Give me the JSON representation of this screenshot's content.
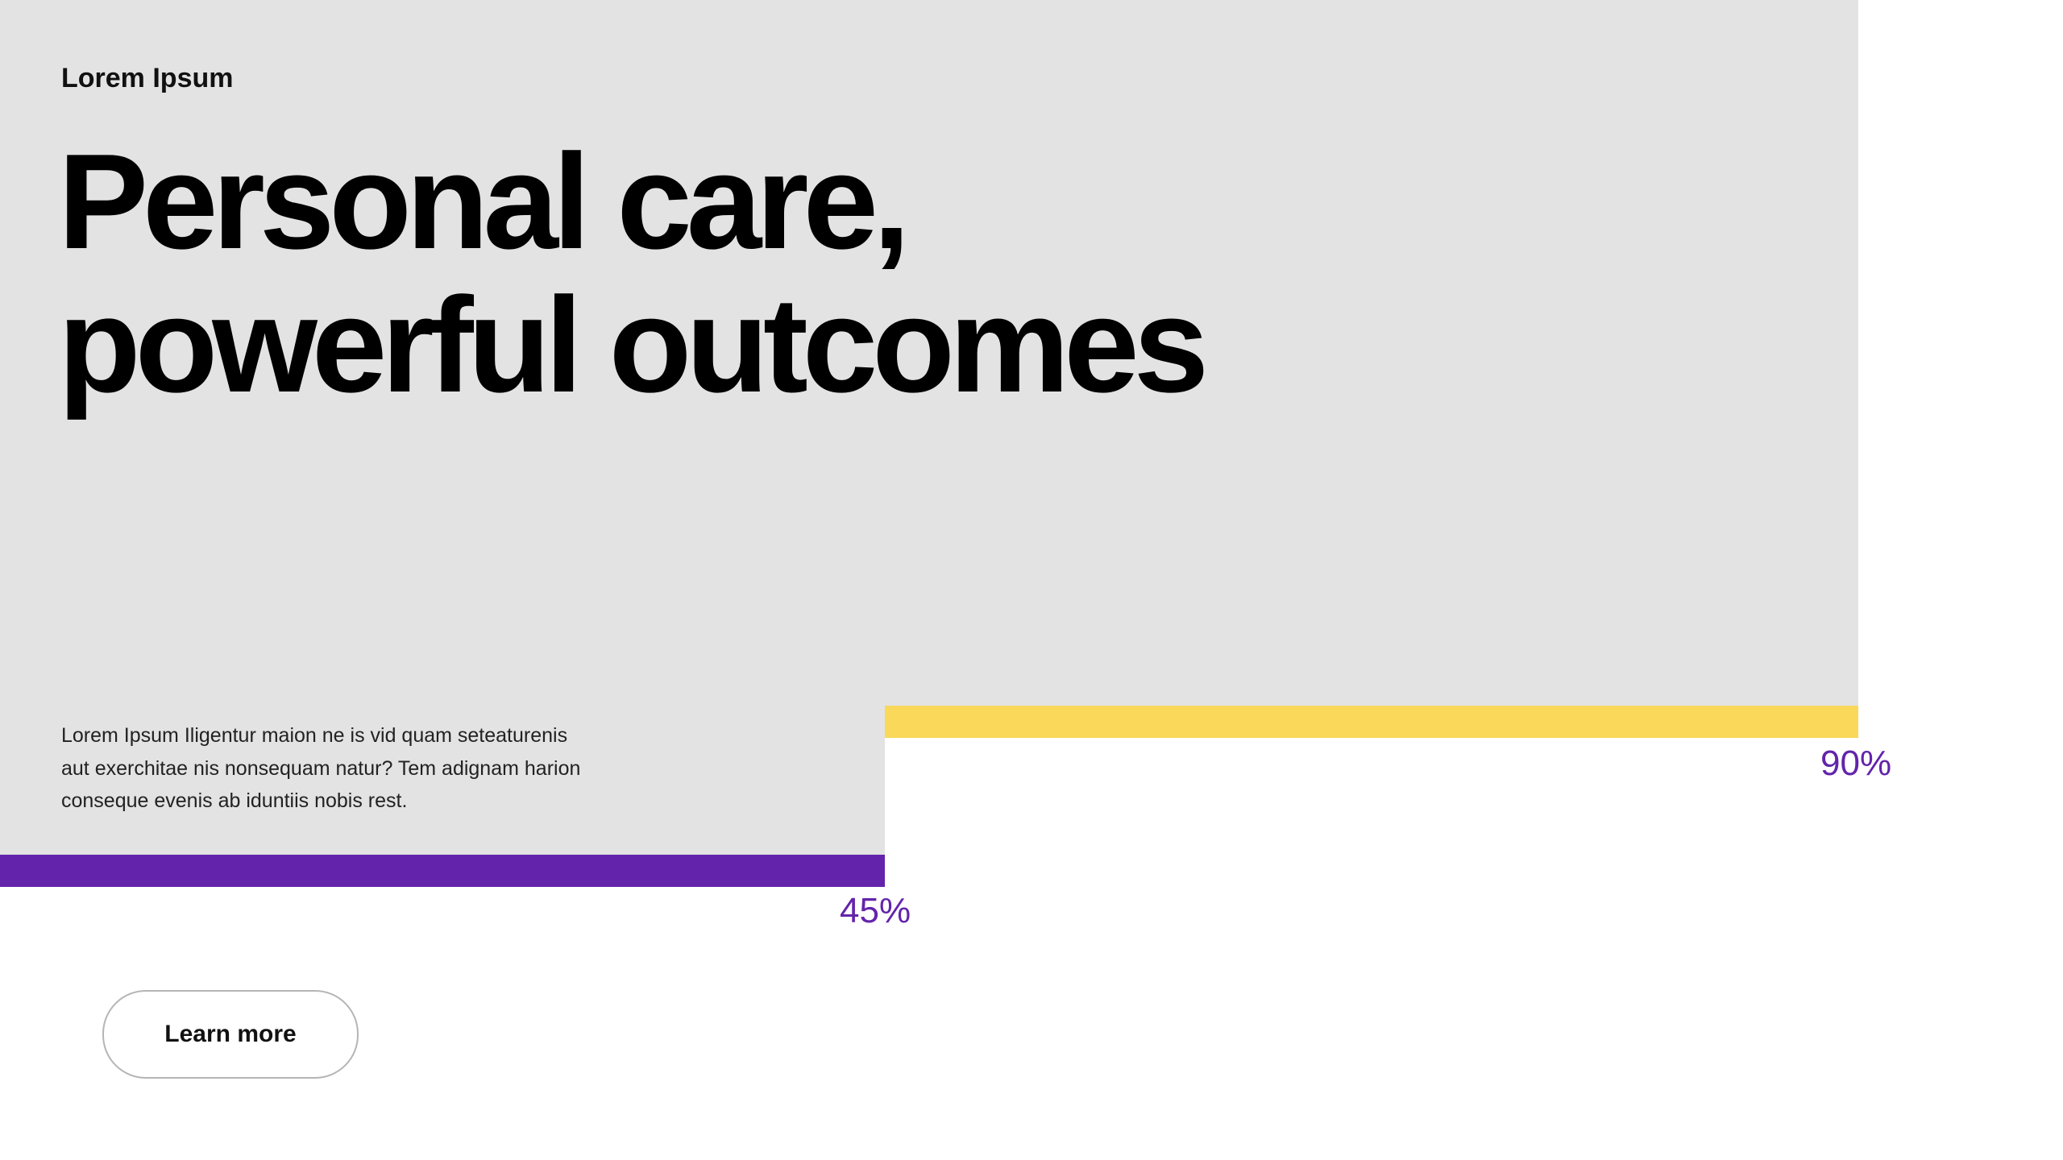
{
  "eyebrow": "Lorem Ipsum",
  "headline": [
    "Personal care,",
    "powerful outcomes"
  ],
  "body": [
    "Lorem Ipsum Iligentur maion ne is vid quam seteaturenis",
    "aut exerchitae nis nonsequam natur? Tem adignam harion",
    "conseque evenis ab iduntiis nobis rest."
  ],
  "stats": [
    "45%",
    "90%"
  ],
  "button": "Learn more"
}
